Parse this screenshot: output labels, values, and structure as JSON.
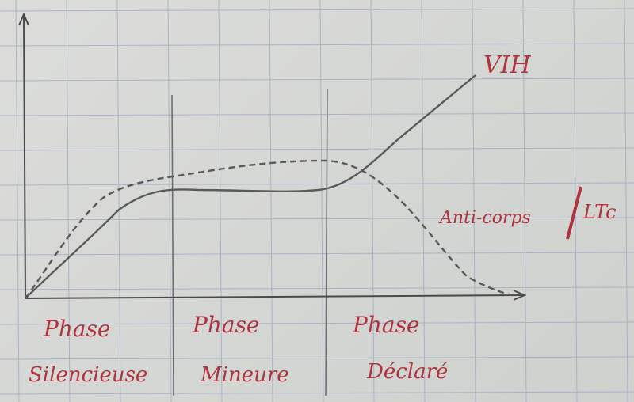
{
  "paper": {
    "background": "#d6d7d4",
    "grid_color": "#9aa8c4",
    "ink_pencil": "#555555",
    "ink_red": "#b0343f"
  },
  "labels": {
    "vih": "VIH",
    "antibodies": "Anti-corps",
    "ltc": "LTc",
    "phase_word": "Phase",
    "phase_1": "Silencieuse",
    "phase_2": "Mineure",
    "phase_3": "Déclaré"
  }
}
